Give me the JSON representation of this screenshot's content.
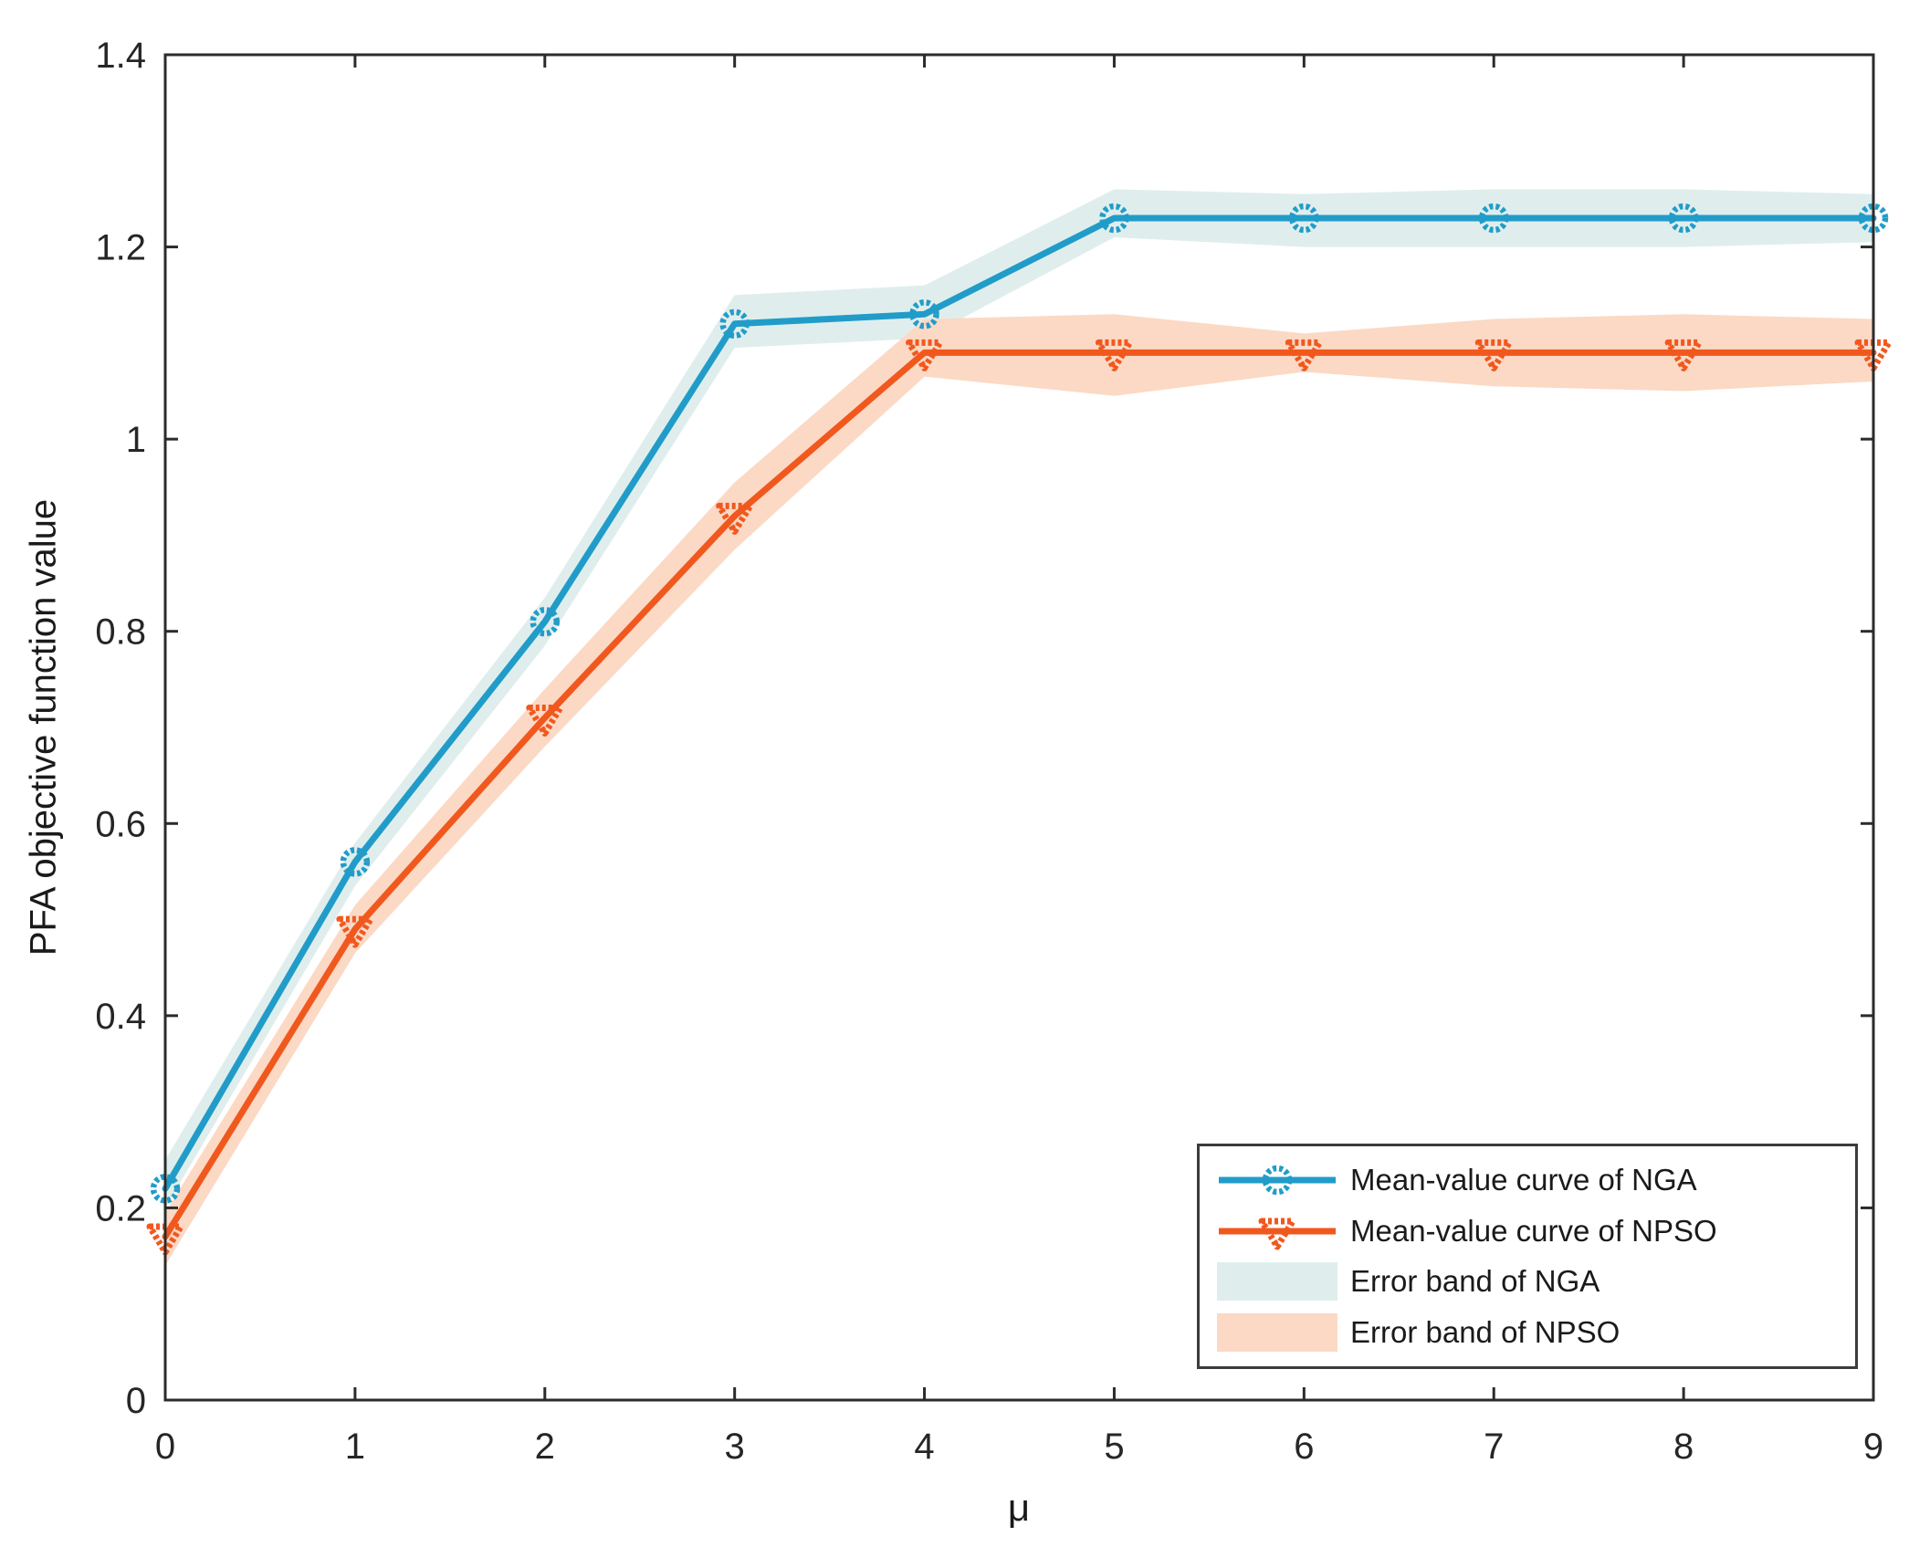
{
  "figure": {
    "background": "#FFFFFF"
  },
  "axis": {
    "color": "#2B2B2B",
    "tick_label_color": "#262626"
  },
  "chart_data": {
    "type": "line",
    "title": "",
    "xlabel": "μ",
    "ylabel": "PFA objective function value",
    "xlim": [
      0,
      9
    ],
    "ylim": [
      0,
      1.4
    ],
    "grid": false,
    "xticks": {
      "values": [
        0,
        1,
        2,
        3,
        4,
        5,
        6,
        7,
        8,
        9
      ],
      "labels": [
        "0",
        "1",
        "2",
        "3",
        "4",
        "5",
        "6",
        "7",
        "8",
        "9"
      ]
    },
    "yticks": {
      "values": [
        0,
        0.2,
        0.4,
        0.6,
        0.8,
        1,
        1.2,
        1.4
      ],
      "labels": [
        "0",
        "0.2",
        "0.4",
        "0.6",
        "0.8",
        "1",
        "1.2",
        "1.4"
      ]
    },
    "x": [
      0,
      1,
      2,
      3,
      4,
      5,
      6,
      7,
      8,
      9
    ],
    "series": [
      {
        "name": "Mean-value curve of NGA",
        "kind": "line",
        "marker": "circle",
        "color": "#219CC9",
        "values": [
          0.22,
          0.56,
          0.81,
          1.12,
          1.13,
          1.23,
          1.23,
          1.23,
          1.23,
          1.23
        ]
      },
      {
        "name": "Mean-value curve of NPSO",
        "kind": "line",
        "marker": "triangle-down",
        "color": "#F1581E",
        "values": [
          0.17,
          0.49,
          0.71,
          0.92,
          1.09,
          1.09,
          1.09,
          1.09,
          1.09,
          1.09
        ]
      },
      {
        "name": "Error band of NGA",
        "kind": "band",
        "color": "#DFEEED",
        "upper": [
          0.25,
          0.58,
          0.835,
          1.15,
          1.16,
          1.26,
          1.255,
          1.26,
          1.26,
          1.255
        ],
        "lower": [
          0.2,
          0.535,
          0.785,
          1.095,
          1.105,
          1.21,
          1.2,
          1.2,
          1.2,
          1.205
        ]
      },
      {
        "name": "Error band of NPSO",
        "kind": "band",
        "color": "#FBD9C5",
        "upper": [
          0.195,
          0.515,
          0.74,
          0.955,
          1.125,
          1.13,
          1.11,
          1.125,
          1.13,
          1.125
        ],
        "lower": [
          0.14,
          0.465,
          0.68,
          0.885,
          1.065,
          1.045,
          1.07,
          1.055,
          1.05,
          1.06
        ]
      }
    ],
    "legend": {
      "position": "bottom-right",
      "entries": [
        "Mean-value curve of NGA",
        "Mean-value curve of NPSO",
        "Error band of NGA",
        "Error band of NPSO"
      ]
    }
  }
}
